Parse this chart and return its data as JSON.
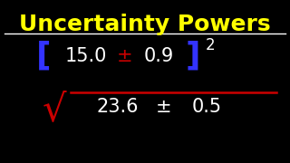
{
  "title": "Uncertainty Powers",
  "title_color": "#FFFF00",
  "bg_color": "#000000",
  "line_color": "#FFFFFF",
  "bracket_color": "#3333FF",
  "pm_color_top": "#CC0000",
  "pm_color_bot": "#FFFFFF",
  "main_text_color": "#FFFFFF",
  "sqrt_color": "#CC0000",
  "top_expr_main": "15.0",
  "top_expr_pm": "±",
  "top_expr_unc": "0.9",
  "top_power": "2",
  "bot_expr_main": "23.6",
  "bot_expr_pm": "±",
  "bot_expr_unc": "0.5",
  "title_fontsize": 18,
  "expr_fontsize": 15,
  "power_fontsize": 10,
  "bracket_fontsize": 22
}
